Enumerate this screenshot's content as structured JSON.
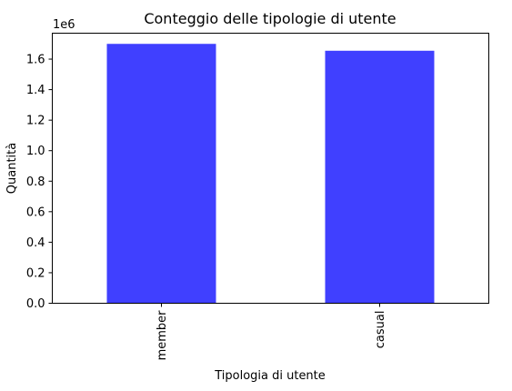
{
  "chart_data": {
    "type": "bar",
    "title": "Conteggio delle tipologie di utente",
    "xlabel": "Tipologia di utente",
    "ylabel": "Quantità",
    "y_offset_label": "1e6",
    "categories": [
      "member",
      "casual"
    ],
    "values": [
      1.7,
      1.655
    ],
    "value_multiplier": 1000000,
    "ylim": [
      0,
      1.77
    ],
    "yticks": [
      0.0,
      0.2,
      0.4,
      0.6,
      0.8,
      1.0,
      1.2,
      1.4,
      1.6
    ],
    "ytick_labels": [
      "0.0",
      "0.2",
      "0.4",
      "0.6",
      "0.8",
      "1.0",
      "1.2",
      "1.4",
      "1.6"
    ],
    "bar_color": "#4040ff",
    "grid": false,
    "legend": "none"
  }
}
